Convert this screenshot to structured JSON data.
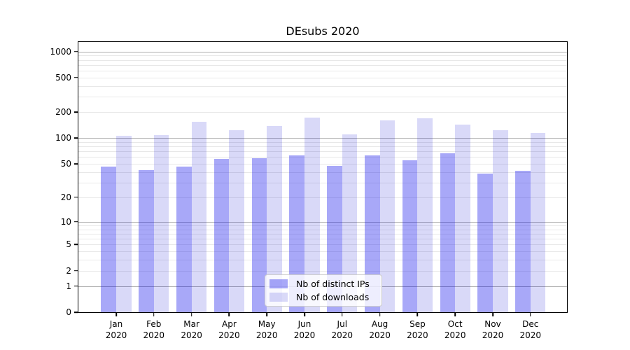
{
  "figure": {
    "title": "DEsubs 2020"
  },
  "chart_data": {
    "type": "bar",
    "title": "DEsubs 2020",
    "categories": [
      "Jan",
      "Feb",
      "Mar",
      "Apr",
      "May",
      "Jun",
      "Jul",
      "Aug",
      "Sep",
      "Oct",
      "Nov",
      "Dec"
    ],
    "x_tick_second_line": "2020",
    "series": [
      {
        "name": "Nb of distinct IPs",
        "color": "#a8a8f8",
        "fill_rgba": "rgba(0,0,235,0.34)",
        "values": [
          46,
          42,
          46,
          57,
          58,
          63,
          47,
          63,
          55,
          67,
          38,
          41
        ]
      },
      {
        "name": "Nb of downloads",
        "color": "#d8d8f8",
        "fill_rgba": "rgba(0,0,210,0.15)",
        "values": [
          107,
          108,
          154,
          124,
          139,
          172,
          111,
          160,
          168,
          143,
          124,
          114
        ]
      }
    ],
    "y_scale": "log1p",
    "y_ticks": [
      0,
      1,
      2,
      5,
      10,
      20,
      50,
      100,
      200,
      500,
      1000
    ],
    "ylim": [
      0,
      1285
    ],
    "xlabel": "",
    "ylabel": "",
    "grid": {
      "on": true,
      "major_color": "#b0b0b0",
      "minor_color": "#e8e8e8"
    },
    "legend_position": "lower center"
  }
}
